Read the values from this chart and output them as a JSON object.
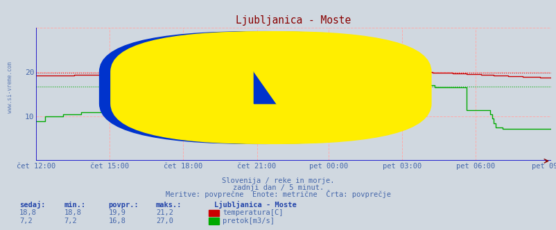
{
  "title": "Ljubljanica - Moste",
  "title_color": "#880000",
  "bg_color": "#d0d8e0",
  "plot_bg_color": "#d0d8e0",
  "grid_color_red": "#ffaaaa",
  "grid_color_green": "#aaddaa",
  "axis_color": "#0000cc",
  "text_color": "#4466aa",
  "x_labels": [
    "čet 12:00",
    "čet 15:00",
    "čet 18:00",
    "čet 21:00",
    "pet 00:00",
    "pet 03:00",
    "pet 06:00",
    "pet 09:00"
  ],
  "x_ticks_norm": [
    0.0,
    0.143,
    0.286,
    0.429,
    0.571,
    0.714,
    0.857,
    1.0
  ],
  "total_points": 288,
  "ylim": [
    0,
    30
  ],
  "avg_temp": 19.9,
  "avg_flow": 16.8,
  "watermark": "www.si-vreme.com",
  "subtitle1": "Slovenija / reke in morje.",
  "subtitle2": "zadnji dan / 5 minut.",
  "subtitle3": "Meritve: povprečne  Enote: metrične  Črta: povprečje",
  "legend_title": "Ljubljanica - Moste",
  "legend_items": [
    {
      "label": "temperatura[C]",
      "color": "#cc0000"
    },
    {
      "label": "pretok[m3/s]",
      "color": "#00aa00"
    }
  ],
  "stats_headers": [
    "sedaj:",
    "min.:",
    "povpr.:",
    "maks.:"
  ],
  "stats_temp": [
    "18,8",
    "18,8",
    "19,9",
    "21,2"
  ],
  "stats_flow": [
    "7,2",
    "7,2",
    "16,8",
    "27,0"
  ],
  "temp_color": "#cc0000",
  "flow_color": "#00aa00"
}
